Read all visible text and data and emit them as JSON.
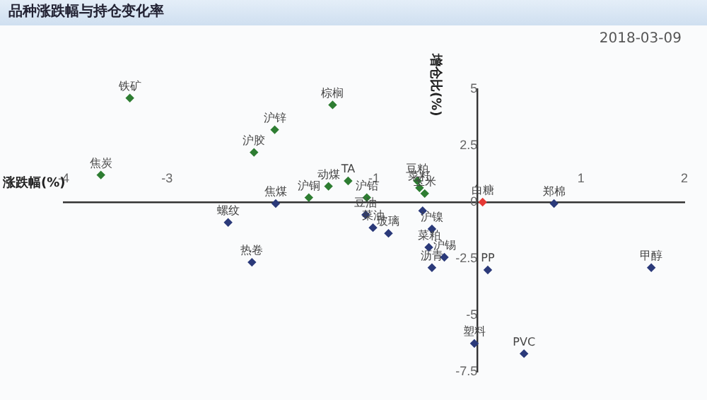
{
  "chart_data": {
    "type": "scatter",
    "title": "品种涨跌幅与持仓变化率",
    "xlabel": "涨跌幅(%)",
    "ylabel": "增仓比(%)",
    "xlim": [
      -4,
      2
    ],
    "xticks": [
      -4,
      -3,
      -1,
      1,
      2
    ],
    "ylim": [
      -7.5,
      5
    ],
    "yticks": [
      -7.5,
      -5,
      -2.5,
      0,
      2.5,
      5
    ],
    "grid": false,
    "legend": false,
    "marker": "diamond",
    "series": [
      {
        "color": "#2e7d32",
        "x": [
          -3.36,
          -3.64,
          -1.96,
          -2.16,
          -1.4,
          -1.44,
          -1.25,
          -1.63,
          -1.07,
          -0.58,
          -0.56,
          -0.51
        ],
        "values": [
          4.6,
          1.2,
          3.2,
          2.2,
          4.3,
          0.7,
          0.94,
          0.2,
          0.2,
          0.94,
          0.63,
          0.38
        ]
      },
      {
        "color": "#2b3a7a",
        "x": [
          -1.95,
          -2.41,
          -2.18,
          0.74,
          -1.08,
          -1.01,
          -0.86,
          -0.53,
          -0.44,
          -0.47,
          -0.32,
          -0.44,
          0.1,
          1.68,
          -0.03,
          0.45
        ],
        "values": [
          -0.06,
          -0.9,
          -2.66,
          -0.06,
          -0.56,
          -1.13,
          -1.38,
          -0.38,
          -1.19,
          -2.0,
          -2.44,
          -2.9,
          -3.0,
          -2.9,
          -6.25,
          -6.7
        ]
      },
      {
        "color": "#e53935",
        "x": [
          0.05
        ],
        "values": [
          0
        ]
      }
    ],
    "annotations": [
      "2018-03-09",
      {
        "text": "铁矿",
        "x": -3.36,
        "y": 4.6
      },
      {
        "text": "焦炭",
        "x": -3.64,
        "y": 1.2
      },
      {
        "text": "沪锌",
        "x": -1.96,
        "y": 3.2
      },
      {
        "text": "沪胶",
        "x": -2.16,
        "y": 2.2
      },
      {
        "text": "棕榈",
        "x": -1.4,
        "y": 4.3
      },
      {
        "text": "动煤",
        "x": -1.44,
        "y": 0.7
      },
      {
        "text": "TA",
        "x": -1.25,
        "y": 0.94
      },
      {
        "text": "沪铜",
        "x": -1.63,
        "y": 0.2
      },
      {
        "text": "沪铅",
        "x": -1.07,
        "y": 0.2
      },
      {
        "text": "豆粕",
        "x": -0.58,
        "y": 0.94
      },
      {
        "text": "菜籽",
        "x": -0.56,
        "y": 0.63
      },
      {
        "text": "玉米",
        "x": -0.51,
        "y": 0.38
      },
      {
        "text": "焦煤",
        "x": -1.95,
        "y": -0.06
      },
      {
        "text": "螺纹",
        "x": -2.41,
        "y": -0.9
      },
      {
        "text": "热卷",
        "x": -2.18,
        "y": -2.66
      },
      {
        "text": "郑棉",
        "x": 0.74,
        "y": -0.06
      },
      {
        "text": "豆油",
        "x": -1.08,
        "y": -0.56
      },
      {
        "text": "菜油",
        "x": -1.01,
        "y": -1.13
      },
      {
        "text": "玻璃",
        "x": -0.86,
        "y": -1.38
      },
      {
        "text": "沪镍",
        "x": -0.44,
        "y": -1.19
      },
      {
        "text": "菜粕",
        "x": -0.47,
        "y": -2.0
      },
      {
        "text": "沪锡",
        "x": -0.32,
        "y": -2.44
      },
      {
        "text": "沥青",
        "x": -0.44,
        "y": -2.9
      },
      {
        "text": "PP",
        "x": 0.1,
        "y": -3.0
      },
      {
        "text": "甲醇",
        "x": 1.68,
        "y": -2.9
      },
      {
        "text": "塑料",
        "x": -0.03,
        "y": -6.25
      },
      {
        "text": "PVC",
        "x": 0.45,
        "y": -6.7
      },
      {
        "text": "白糖",
        "x": 0.05,
        "y": 0
      }
    ]
  }
}
